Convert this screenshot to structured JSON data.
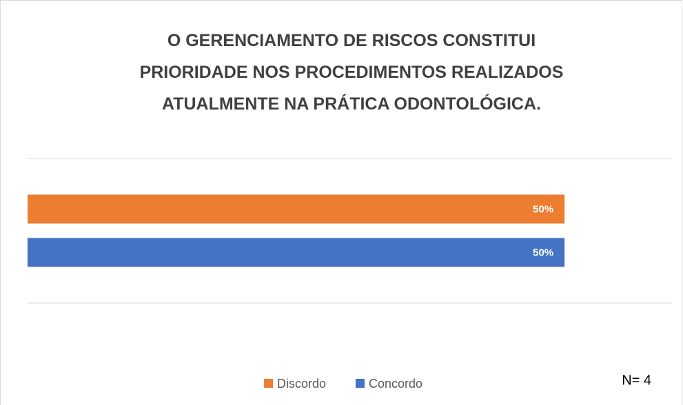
{
  "chart_data": {
    "type": "barh",
    "title": "O GERENCIAMENTO DE RISCOS CONSTITUI\nPRIORIDADE NOS PROCEDIMENTOS REALIZADOS\nATUALMENTE NA PRÁTICA ODONTOLÓGICA.",
    "categories": [
      null
    ],
    "series": [
      {
        "name": "Discordo",
        "color": "#ed7d31",
        "values": [
          50
        ],
        "value_labels": [
          "50%"
        ]
      },
      {
        "name": "Concordo",
        "color": "#4472c4",
        "values": [
          50
        ],
        "value_labels": [
          "50%"
        ]
      }
    ],
    "xlim": [
      0,
      60
    ],
    "legend": "bottom",
    "annotation": "N= 4"
  }
}
